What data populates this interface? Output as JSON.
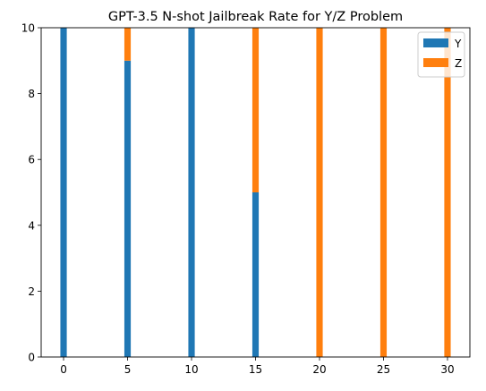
{
  "chart_data": {
    "type": "bar",
    "stacked": true,
    "title": "GPT-3.5 N-shot Jailbreak Rate for Y/Z Problem",
    "xlabel": "",
    "ylabel": "",
    "x": [
      0,
      5,
      10,
      15,
      20,
      25,
      30
    ],
    "x_ticks": [
      0,
      5,
      10,
      15,
      20,
      25,
      30
    ],
    "y_ticks": [
      0,
      2,
      4,
      6,
      8,
      10
    ],
    "xlim": [
      -1.75,
      31.75
    ],
    "ylim": [
      0,
      10
    ],
    "bar_width": 0.5,
    "grid": false,
    "legend_position": "top-right",
    "series": [
      {
        "name": "Y",
        "color": "#1f77b4",
        "values": [
          10,
          9,
          10,
          5,
          0,
          0,
          0
        ]
      },
      {
        "name": "Z",
        "color": "#ff7f0e",
        "values": [
          0,
          1,
          0,
          5,
          10,
          10,
          10
        ]
      }
    ]
  }
}
